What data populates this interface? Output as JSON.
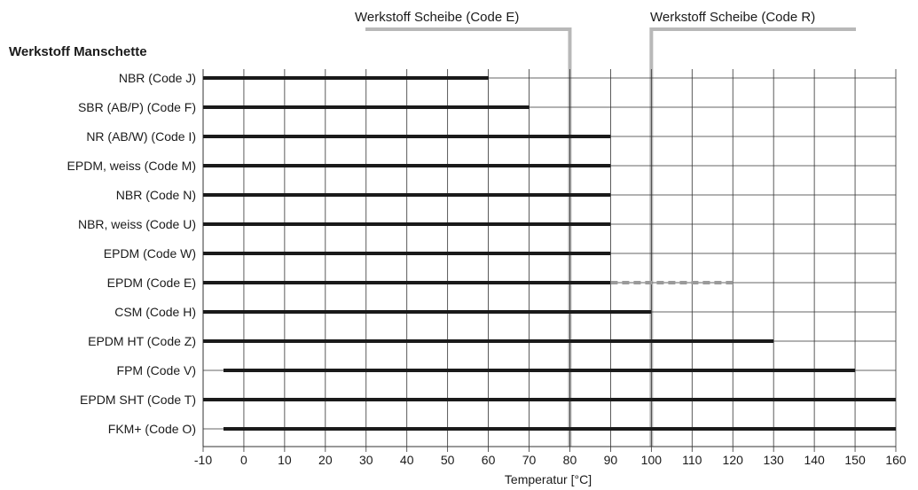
{
  "chart_data": {
    "type": "bar",
    "orientation": "horizontal",
    "ylabel": "Werkstoff Manschette",
    "xlabel": "Temperatur [°C]",
    "xlim": [
      -10,
      160
    ],
    "xticks": [
      -10,
      0,
      10,
      20,
      30,
      40,
      50,
      60,
      70,
      80,
      90,
      100,
      110,
      120,
      130,
      140,
      150,
      160
    ],
    "grid": true,
    "categories": [
      "NBR (Code J)",
      "SBR (AB/P) (Code F)",
      "NR (AB/W) (Code I)",
      "EPDM, weiss (Code M)",
      "NBR (Code N)",
      "NBR, weiss (Code U)",
      "EPDM (Code W)",
      "EPDM (Code E)",
      "CSM (Code H)",
      "EPDM HT (Code Z)",
      "FPM (Code V)",
      "EPDM SHT (Code T)",
      "FKM+ (Code O)"
    ],
    "ranges": [
      [
        -10,
        60
      ],
      [
        -10,
        70
      ],
      [
        -10,
        90
      ],
      [
        -10,
        90
      ],
      [
        -10,
        90
      ],
      [
        -10,
        90
      ],
      [
        -10,
        90
      ],
      [
        -10,
        90
      ],
      [
        -10,
        100
      ],
      [
        -10,
        130
      ],
      [
        -5,
        150
      ],
      [
        -10,
        160
      ],
      [
        -5,
        160
      ]
    ],
    "extensions": [
      {
        "category": "EPDM (Code E)",
        "from": 90,
        "to": 120,
        "style": "dashed"
      }
    ],
    "annotations": [
      {
        "label": "Werkstoff Scheibe (Code E)",
        "x": 80,
        "side": "left"
      },
      {
        "label": "Werkstoff Scheibe (Code R)",
        "x": 100,
        "side": "right"
      }
    ],
    "colors": {
      "bar": "#1a1a1a",
      "extension": "#9a9a9a",
      "annotation": "#b8b8b8",
      "grid": "#333333"
    }
  }
}
